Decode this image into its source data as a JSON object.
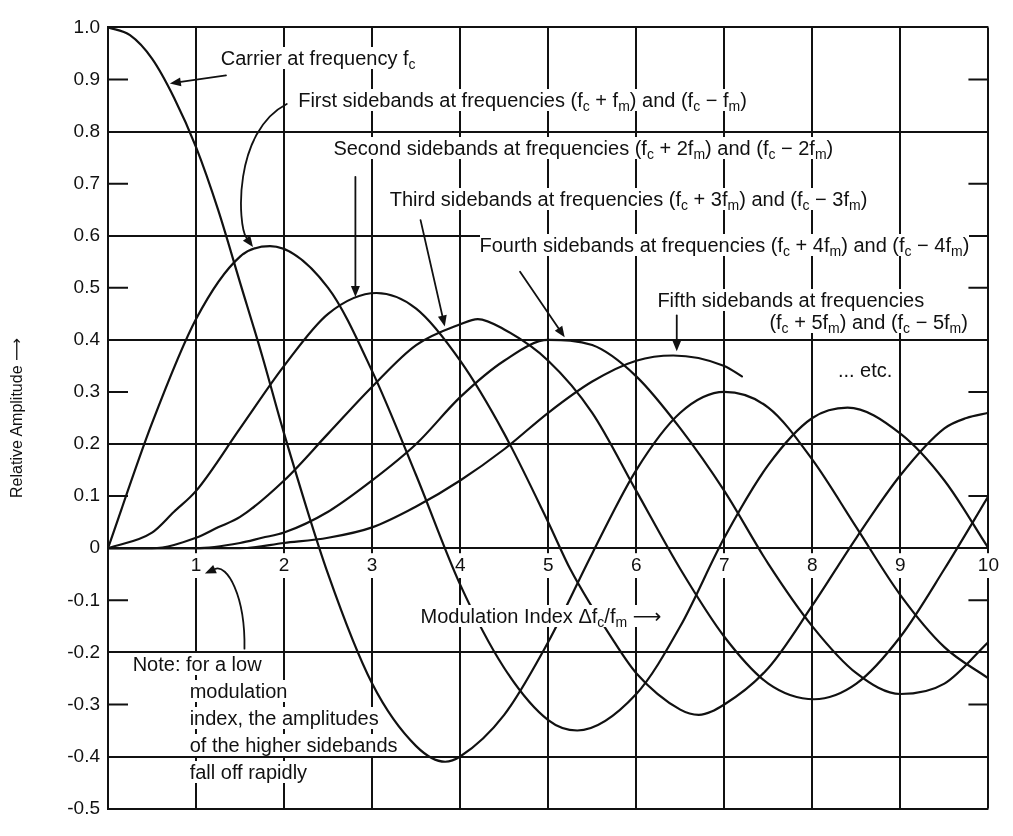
{
  "chart_data": {
    "type": "line",
    "xlabel": "Modulation Index Δf$_{c}$/f$_{m}$ ⟶",
    "ylabel": "Relative Amplitude ⟶",
    "xlim": [
      0,
      10
    ],
    "xticks": [
      1,
      2,
      3,
      4,
      5,
      6,
      7,
      8,
      9,
      10
    ],
    "ylim": [
      -0.5,
      1
    ],
    "yticks": [
      -0.5,
      -0.4,
      -0.3,
      -0.2,
      -0.1,
      0,
      0.1,
      0.2,
      0.3,
      0.4,
      0.5,
      0.6,
      0.7,
      0.8,
      0.9,
      {
        "value": 1,
        "label": "1.0"
      }
    ],
    "grid": true,
    "legend": false,
    "marker": "none",
    "series": [
      {
        "name": "Carrier at frequency f$_{c}$",
        "color": "#111111",
        "x": [
          0,
          0.25,
          0.5,
          0.75,
          1,
          1.25,
          1.5,
          1.75,
          2,
          2.5,
          3,
          3.5,
          3.83,
          4,
          4.5,
          5,
          5.5,
          6,
          6.5,
          7,
          7.5,
          8,
          8.5,
          9,
          9.5,
          10
        ],
        "values": [
          1,
          0.985,
          0.94,
          0.865,
          0.77,
          0.65,
          0.51,
          0.37,
          0.22,
          -0.05,
          -0.26,
          -0.38,
          -0.41,
          -0.4,
          -0.32,
          -0.18,
          -0.01,
          0.15,
          0.26,
          0.3,
          0.27,
          0.17,
          0.04,
          -0.09,
          -0.19,
          -0.25
        ]
      },
      {
        "name": "First sidebands at frequencies (f$_{c}$ + f$_{m}$) and (f$_{c}$ − f$_{m}$)",
        "color": "#111111",
        "x": [
          0,
          0.5,
          1,
          1.5,
          1.84,
          2.5,
          3,
          3.5,
          4,
          4.5,
          5,
          5.33,
          6,
          6.5,
          7,
          7.5,
          8,
          8.4,
          9,
          9.5,
          10
        ],
        "values": [
          0,
          0.24,
          0.44,
          0.56,
          0.58,
          0.5,
          0.34,
          0.14,
          -0.07,
          -0.23,
          -0.33,
          -0.35,
          -0.28,
          -0.15,
          0.02,
          0.16,
          0.25,
          0.27,
          0.22,
          0.13,
          0
        ]
      },
      {
        "name": "Second sidebands at frequencies (f$_{c}$ + 2f$_{m}$) and (f$_{c}$ − 2f$_{m}$)",
        "color": "#111111",
        "x": [
          0,
          0.5,
          0.75,
          1,
          1.5,
          2,
          2.5,
          3.05,
          3.5,
          4,
          4.5,
          5,
          5.25,
          5.75,
          6,
          6.5,
          6.71,
          7,
          7.5,
          8,
          8.5,
          9,
          9.5,
          9.75,
          10
        ],
        "values": [
          0,
          0.03,
          0.07,
          0.11,
          0.23,
          0.35,
          0.45,
          0.49,
          0.46,
          0.36,
          0.22,
          0.05,
          -0.04,
          -0.18,
          -0.24,
          -0.31,
          -0.32,
          -0.3,
          -0.23,
          -0.11,
          0.02,
          0.14,
          0.23,
          0.25,
          0.26
        ]
      },
      {
        "name": "Third sidebands at frequencies (f$_{c}$ + 3f$_{m}$) and (f$_{c}$ − 3f$_{m}$)",
        "color": "#111111",
        "x": [
          0,
          0.5,
          1,
          1.25,
          1.5,
          2,
          2.5,
          3,
          3.5,
          4,
          4.2,
          4.5,
          5,
          5.5,
          6,
          6.5,
          7,
          7.5,
          8.02,
          8.5,
          9,
          9.5,
          10
        ],
        "values": [
          0,
          0,
          0.02,
          0.04,
          0.06,
          0.13,
          0.22,
          0.31,
          0.39,
          0.43,
          0.44,
          0.42,
          0.36,
          0.26,
          0.11,
          -0.04,
          -0.17,
          -0.26,
          -0.29,
          -0.26,
          -0.17,
          -0.04,
          0.1
        ]
      },
      {
        "name": "Fourth sidebands at frequencies (f$_{c}$ + 4f$_{m}$) and (f$_{c}$ − 4f$_{m}$)",
        "color": "#111111",
        "x": [
          0,
          0.5,
          1,
          1.5,
          1.75,
          2,
          2.5,
          3,
          3.5,
          4,
          4.5,
          5,
          5.5,
          6,
          6.5,
          7,
          7.5,
          8,
          8.5,
          9,
          9.5,
          10
        ],
        "values": [
          0,
          0,
          0,
          0.01,
          0.02,
          0.03,
          0.07,
          0.13,
          0.2,
          0.29,
          0.36,
          0.4,
          0.39,
          0.33,
          0.23,
          0.11,
          -0.03,
          -0.15,
          -0.24,
          -0.28,
          -0.26,
          -0.18
        ]
      },
      {
        "name": "Fifth sidebands at frequencies\n(f$_{c}$ + 5f$_{m}$) and (f$_{c}$ − 5f$_{m}$)",
        "color": "#111111",
        "x": [
          0,
          1,
          1.5,
          2,
          2.5,
          3,
          3.5,
          4,
          4.5,
          5,
          5.5,
          6,
          6.42,
          7,
          7.2
        ],
        "values": [
          0,
          0,
          0,
          0.01,
          0.02,
          0.04,
          0.08,
          0.13,
          0.19,
          0.26,
          0.32,
          0.36,
          0.37,
          0.35,
          0.33
        ]
      }
    ],
    "annotations": [
      "... etc.",
      "Note: for a low\nmodulation\nindex, the amplitudes\nof the higher sidebands\nfall off rapidly"
    ]
  }
}
